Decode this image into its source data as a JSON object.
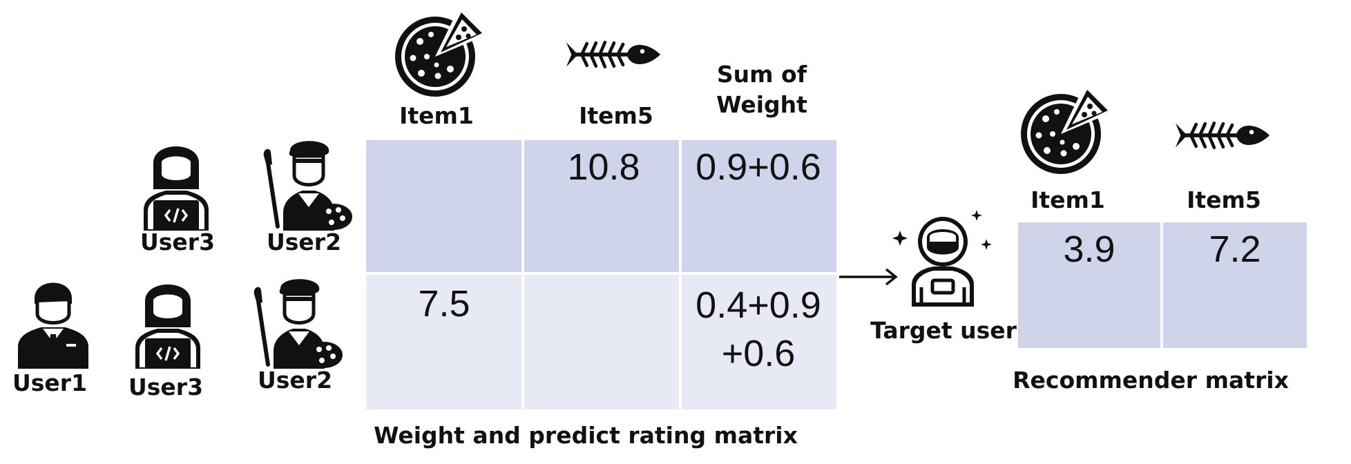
{
  "colors": {
    "cell_dark": "#cfd4ea",
    "cell_light": "#e7e9f4",
    "ink": "#111111",
    "divider": "#ffffff"
  },
  "items": {
    "item1": "Item1",
    "item5": "Item5",
    "sum_of_weight": "Sum of\nWeight"
  },
  "users": {
    "user3_top": "User3",
    "user2_top": "User2",
    "user1": "User1",
    "user3_bottom": "User3",
    "user2_bottom": "User2"
  },
  "weight_matrix": {
    "caption": "Weight and predict rating matrix",
    "rows": [
      [
        "",
        "10.8",
        "0.9+0.6"
      ],
      [
        "7.5",
        "",
        "0.4+0.9\n+0.6"
      ]
    ]
  },
  "target": {
    "label": "Target user"
  },
  "recommender": {
    "caption": "Recommender matrix",
    "item1": "Item1",
    "item5": "Item5",
    "values": [
      "3.9",
      "7.2"
    ]
  },
  "icons": [
    "pizza-icon",
    "fish-bone-icon",
    "programmer-icon",
    "artist-icon",
    "businessman-icon",
    "astronaut-icon",
    "arrow-right-icon"
  ]
}
